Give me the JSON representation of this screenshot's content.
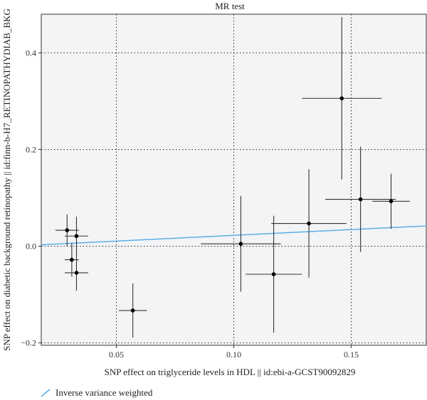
{
  "chart_data": {
    "type": "scatter",
    "title": "MR test",
    "xlabel": "SNP effect on triglyceride levels in HDL || id:ebi-a-GCST90092829",
    "ylabel": "SNP effect on diabetic background retinopathy || id:finn-b-H7_RETINOPATHYDIAB_BKG",
    "xlim": [
      0.018,
      0.182
    ],
    "ylim": [
      -0.205,
      0.48
    ],
    "x_ticks": [
      0.05,
      0.1,
      0.15
    ],
    "x_tick_labels": [
      "0.05",
      "0.10",
      "0.15"
    ],
    "y_ticks": [
      -0.2,
      0.0,
      0.2,
      0.4
    ],
    "y_tick_labels": [
      "−0.2",
      "0.0",
      "0.2",
      "0.4"
    ],
    "grid": true,
    "points": [
      {
        "x": 0.029,
        "y": 0.033,
        "xerr": 0.005,
        "yerr": 0.033
      },
      {
        "x": 0.033,
        "y": 0.021,
        "xerr": 0.005,
        "yerr": 0.04
      },
      {
        "x": 0.031,
        "y": -0.028,
        "xerr": 0.003,
        "yerr": 0.035
      },
      {
        "x": 0.033,
        "y": -0.055,
        "xerr": 0.005,
        "yerr": 0.037
      },
      {
        "x": 0.057,
        "y": -0.133,
        "xerr": 0.006,
        "yerr": 0.056
      },
      {
        "x": 0.103,
        "y": 0.005,
        "xerr": 0.017,
        "yerr": 0.099
      },
      {
        "x": 0.117,
        "y": -0.058,
        "xerr": 0.012,
        "yerr": 0.121
      },
      {
        "x": 0.132,
        "y": 0.047,
        "xerr": 0.016,
        "yerr": 0.112
      },
      {
        "x": 0.146,
        "y": 0.306,
        "xerr": 0.017,
        "yerr": 0.168
      },
      {
        "x": 0.154,
        "y": 0.097,
        "xerr": 0.015,
        "yerr": 0.109
      },
      {
        "x": 0.167,
        "y": 0.093,
        "xerr": 0.008,
        "yerr": 0.057
      }
    ],
    "lines": [
      {
        "name": "Inverse variance weighted",
        "color": "#5aaee6",
        "x": [
          0.018,
          0.182
        ],
        "y": [
          0.003,
          0.042
        ]
      }
    ],
    "legend": {
      "placement": "bottom-left",
      "entries": [
        "Inverse variance weighted"
      ]
    },
    "colors": {
      "panel": "#f3f4f6",
      "point": "#000000",
      "errorbar": "#333333",
      "grid": "#222222",
      "ivw_line": "#5aaee6"
    }
  }
}
